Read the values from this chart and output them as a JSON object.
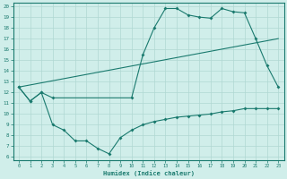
{
  "line1_x": [
    0,
    1,
    2,
    3,
    10,
    11,
    12,
    13,
    14,
    15,
    16,
    17,
    18,
    19,
    20,
    21,
    22,
    23
  ],
  "line1_y": [
    12.5,
    11.2,
    12.0,
    11.5,
    11.5,
    15.5,
    18.0,
    19.8,
    19.8,
    19.2,
    19.0,
    18.9,
    19.8,
    19.5,
    19.4,
    17.0,
    14.5,
    12.5
  ],
  "line2_x": [
    0,
    23
  ],
  "line2_y": [
    12.5,
    17.0
  ],
  "line3_x": [
    0,
    1,
    2,
    3,
    4,
    5,
    6,
    7,
    8,
    9,
    10,
    11,
    12,
    13,
    14,
    15,
    16,
    17,
    18,
    19,
    20,
    21,
    22,
    23
  ],
  "line3_y": [
    12.5,
    11.2,
    12.0,
    9.0,
    8.5,
    7.5,
    7.5,
    6.8,
    6.3,
    7.8,
    8.5,
    9.0,
    9.3,
    9.5,
    9.7,
    9.8,
    9.9,
    10.0,
    10.2,
    10.3,
    10.5,
    10.5,
    10.5,
    10.5
  ],
  "line_color": "#1a7a6e",
  "bg_color": "#d0eeea",
  "grid_color": "#b0d8d2",
  "xlabel": "Humidex (Indice chaleur)",
  "ylim": [
    6,
    20
  ],
  "xlim": [
    -0.5,
    23.5
  ],
  "yticks": [
    6,
    7,
    8,
    9,
    10,
    11,
    12,
    13,
    14,
    15,
    16,
    17,
    18,
    19,
    20
  ],
  "xticks": [
    0,
    1,
    2,
    3,
    4,
    5,
    6,
    7,
    8,
    9,
    10,
    11,
    12,
    13,
    14,
    15,
    16,
    17,
    18,
    19,
    20,
    21,
    22,
    23
  ]
}
